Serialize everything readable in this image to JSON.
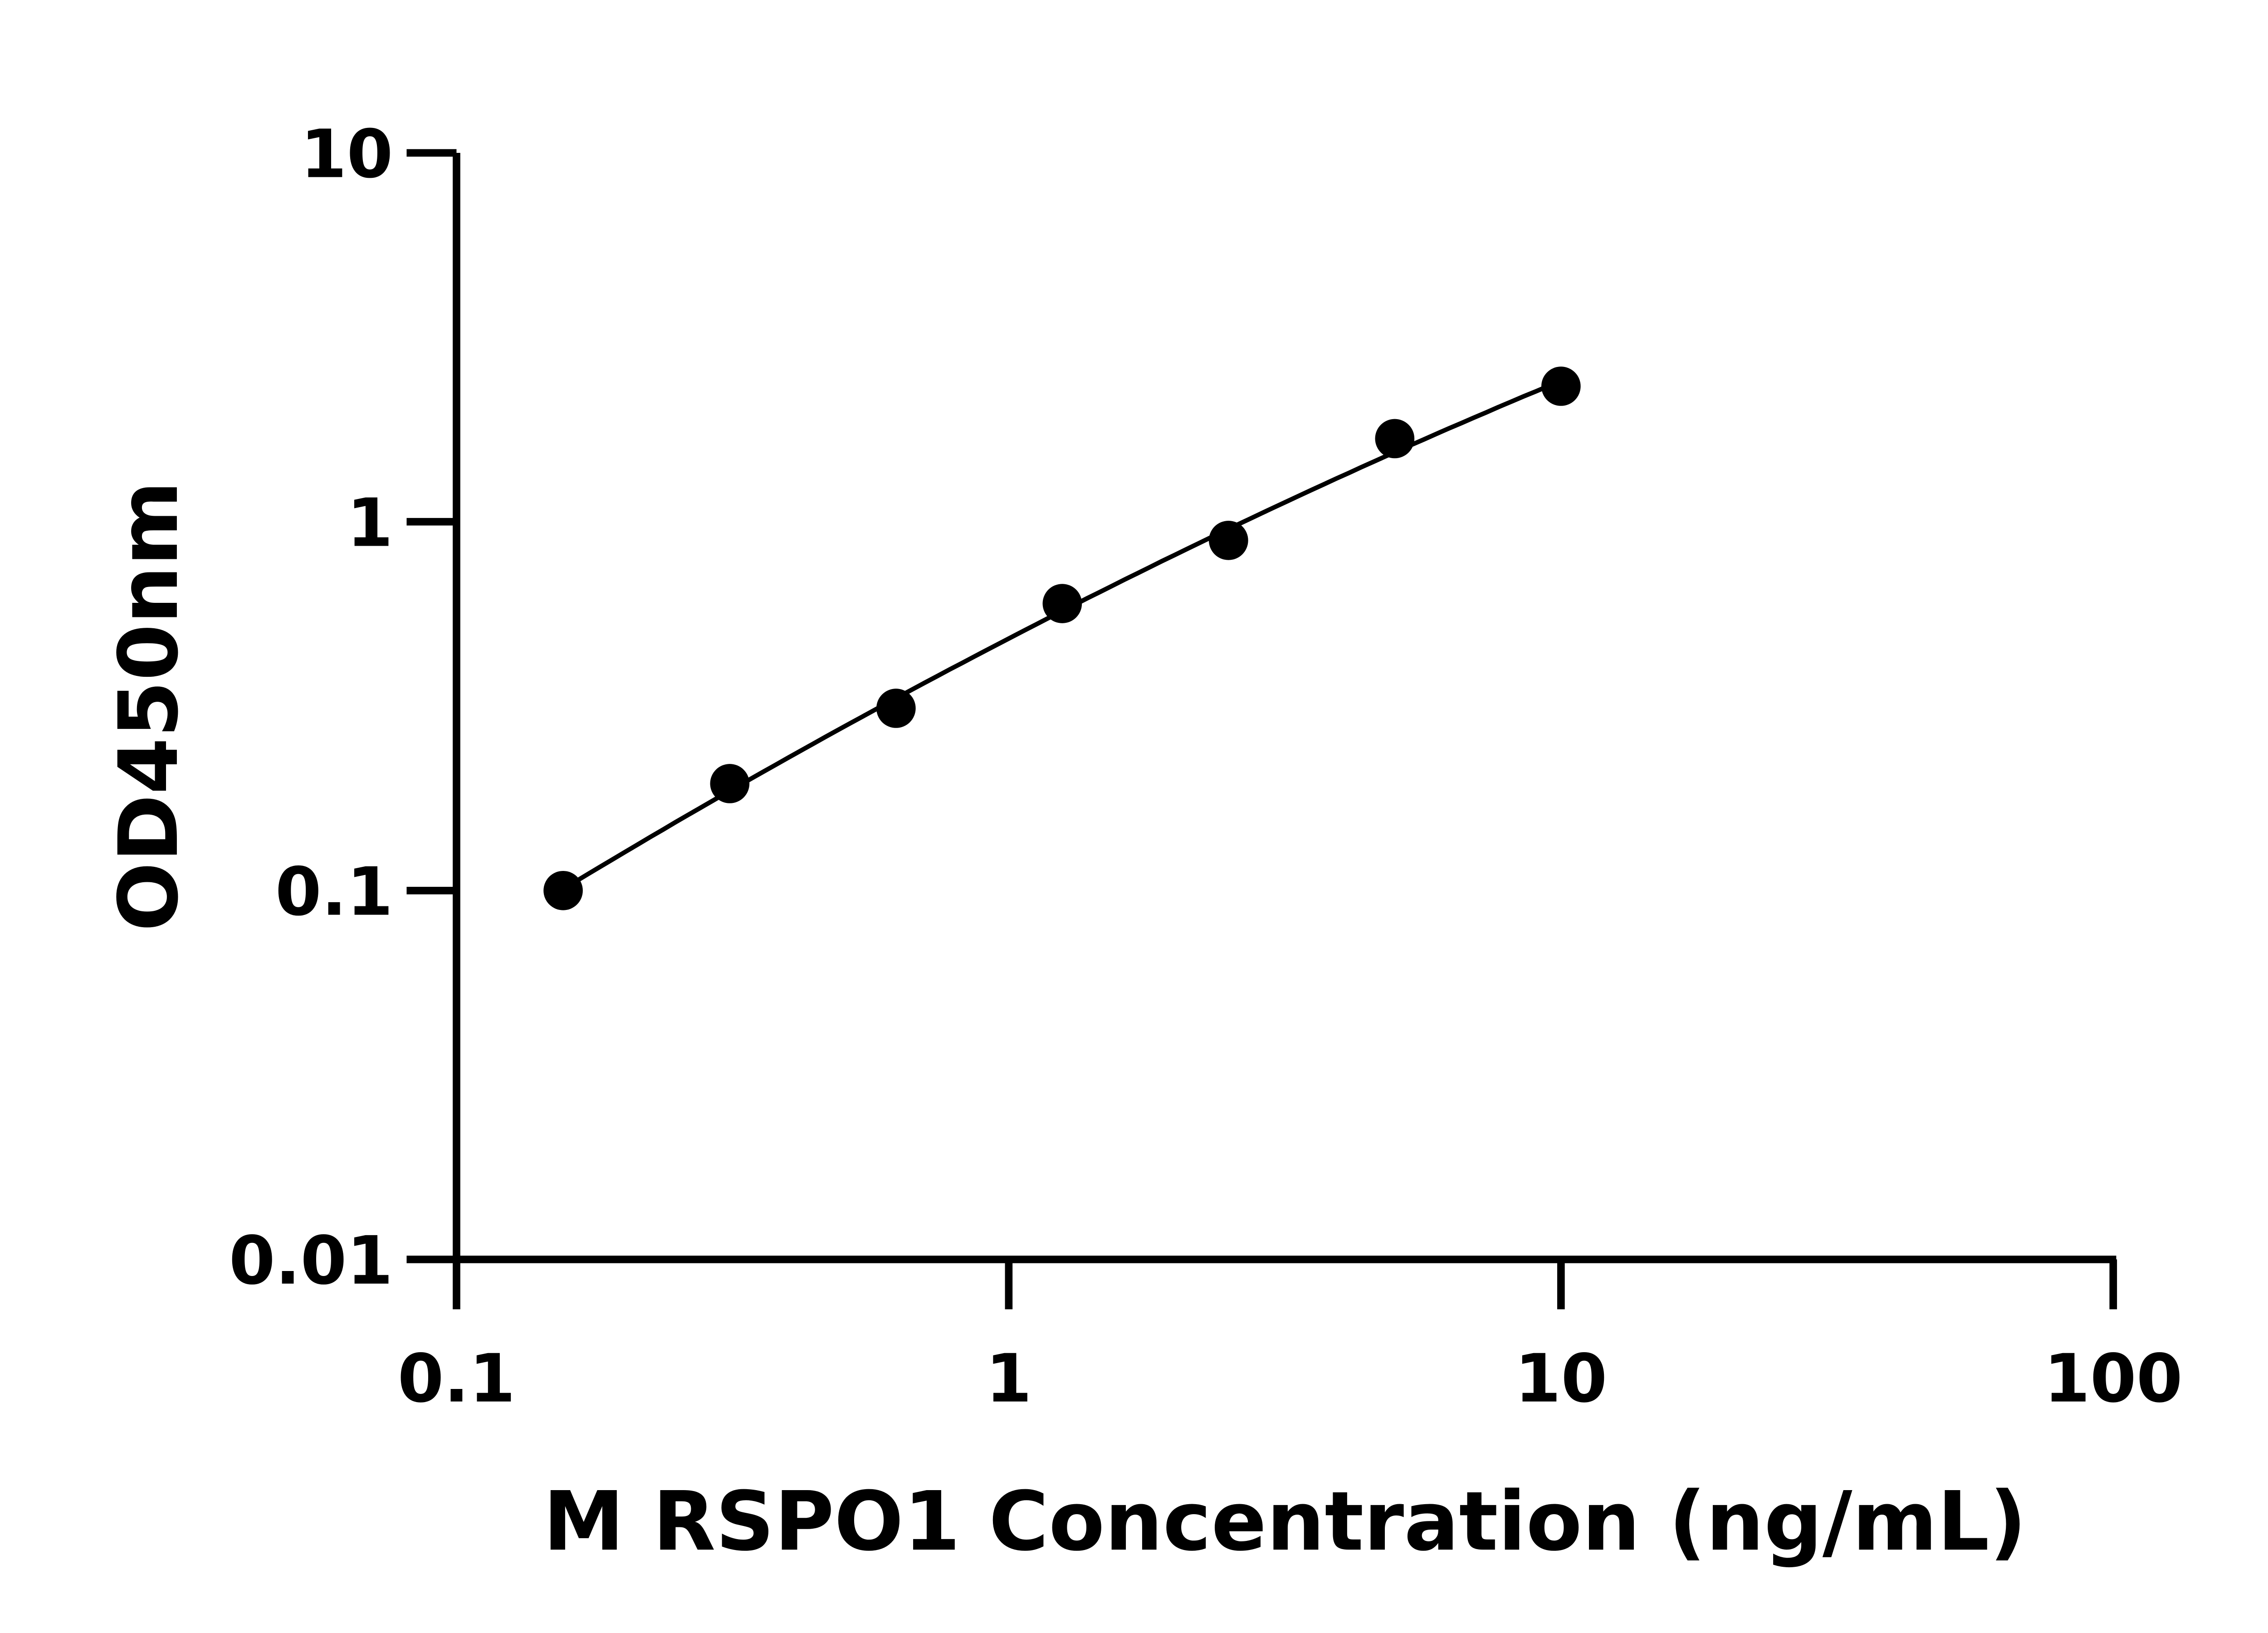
{
  "chart_data": {
    "type": "scatter",
    "title": "",
    "xlabel": "M RSPO1 Concentration (ng/mL)",
    "ylabel": "OD450nm",
    "x_scale": "log",
    "y_scale": "log",
    "xlim": [
      0.1,
      100
    ],
    "ylim": [
      0.01,
      10
    ],
    "x_ticks": [
      "0.1",
      "1",
      "10",
      "100"
    ],
    "y_ticks": [
      "0.01",
      "0.1",
      "1",
      "10"
    ],
    "grid": false,
    "legend": "none",
    "fit_line": true,
    "marker_color": "#000000",
    "series": [
      {
        "x": [
          0.156,
          0.3125,
          0.625,
          1.25,
          2.5,
          5,
          10
        ],
        "y": [
          0.1,
          0.195,
          0.312,
          0.6,
          0.89,
          1.68,
          2.33
        ]
      }
    ]
  }
}
